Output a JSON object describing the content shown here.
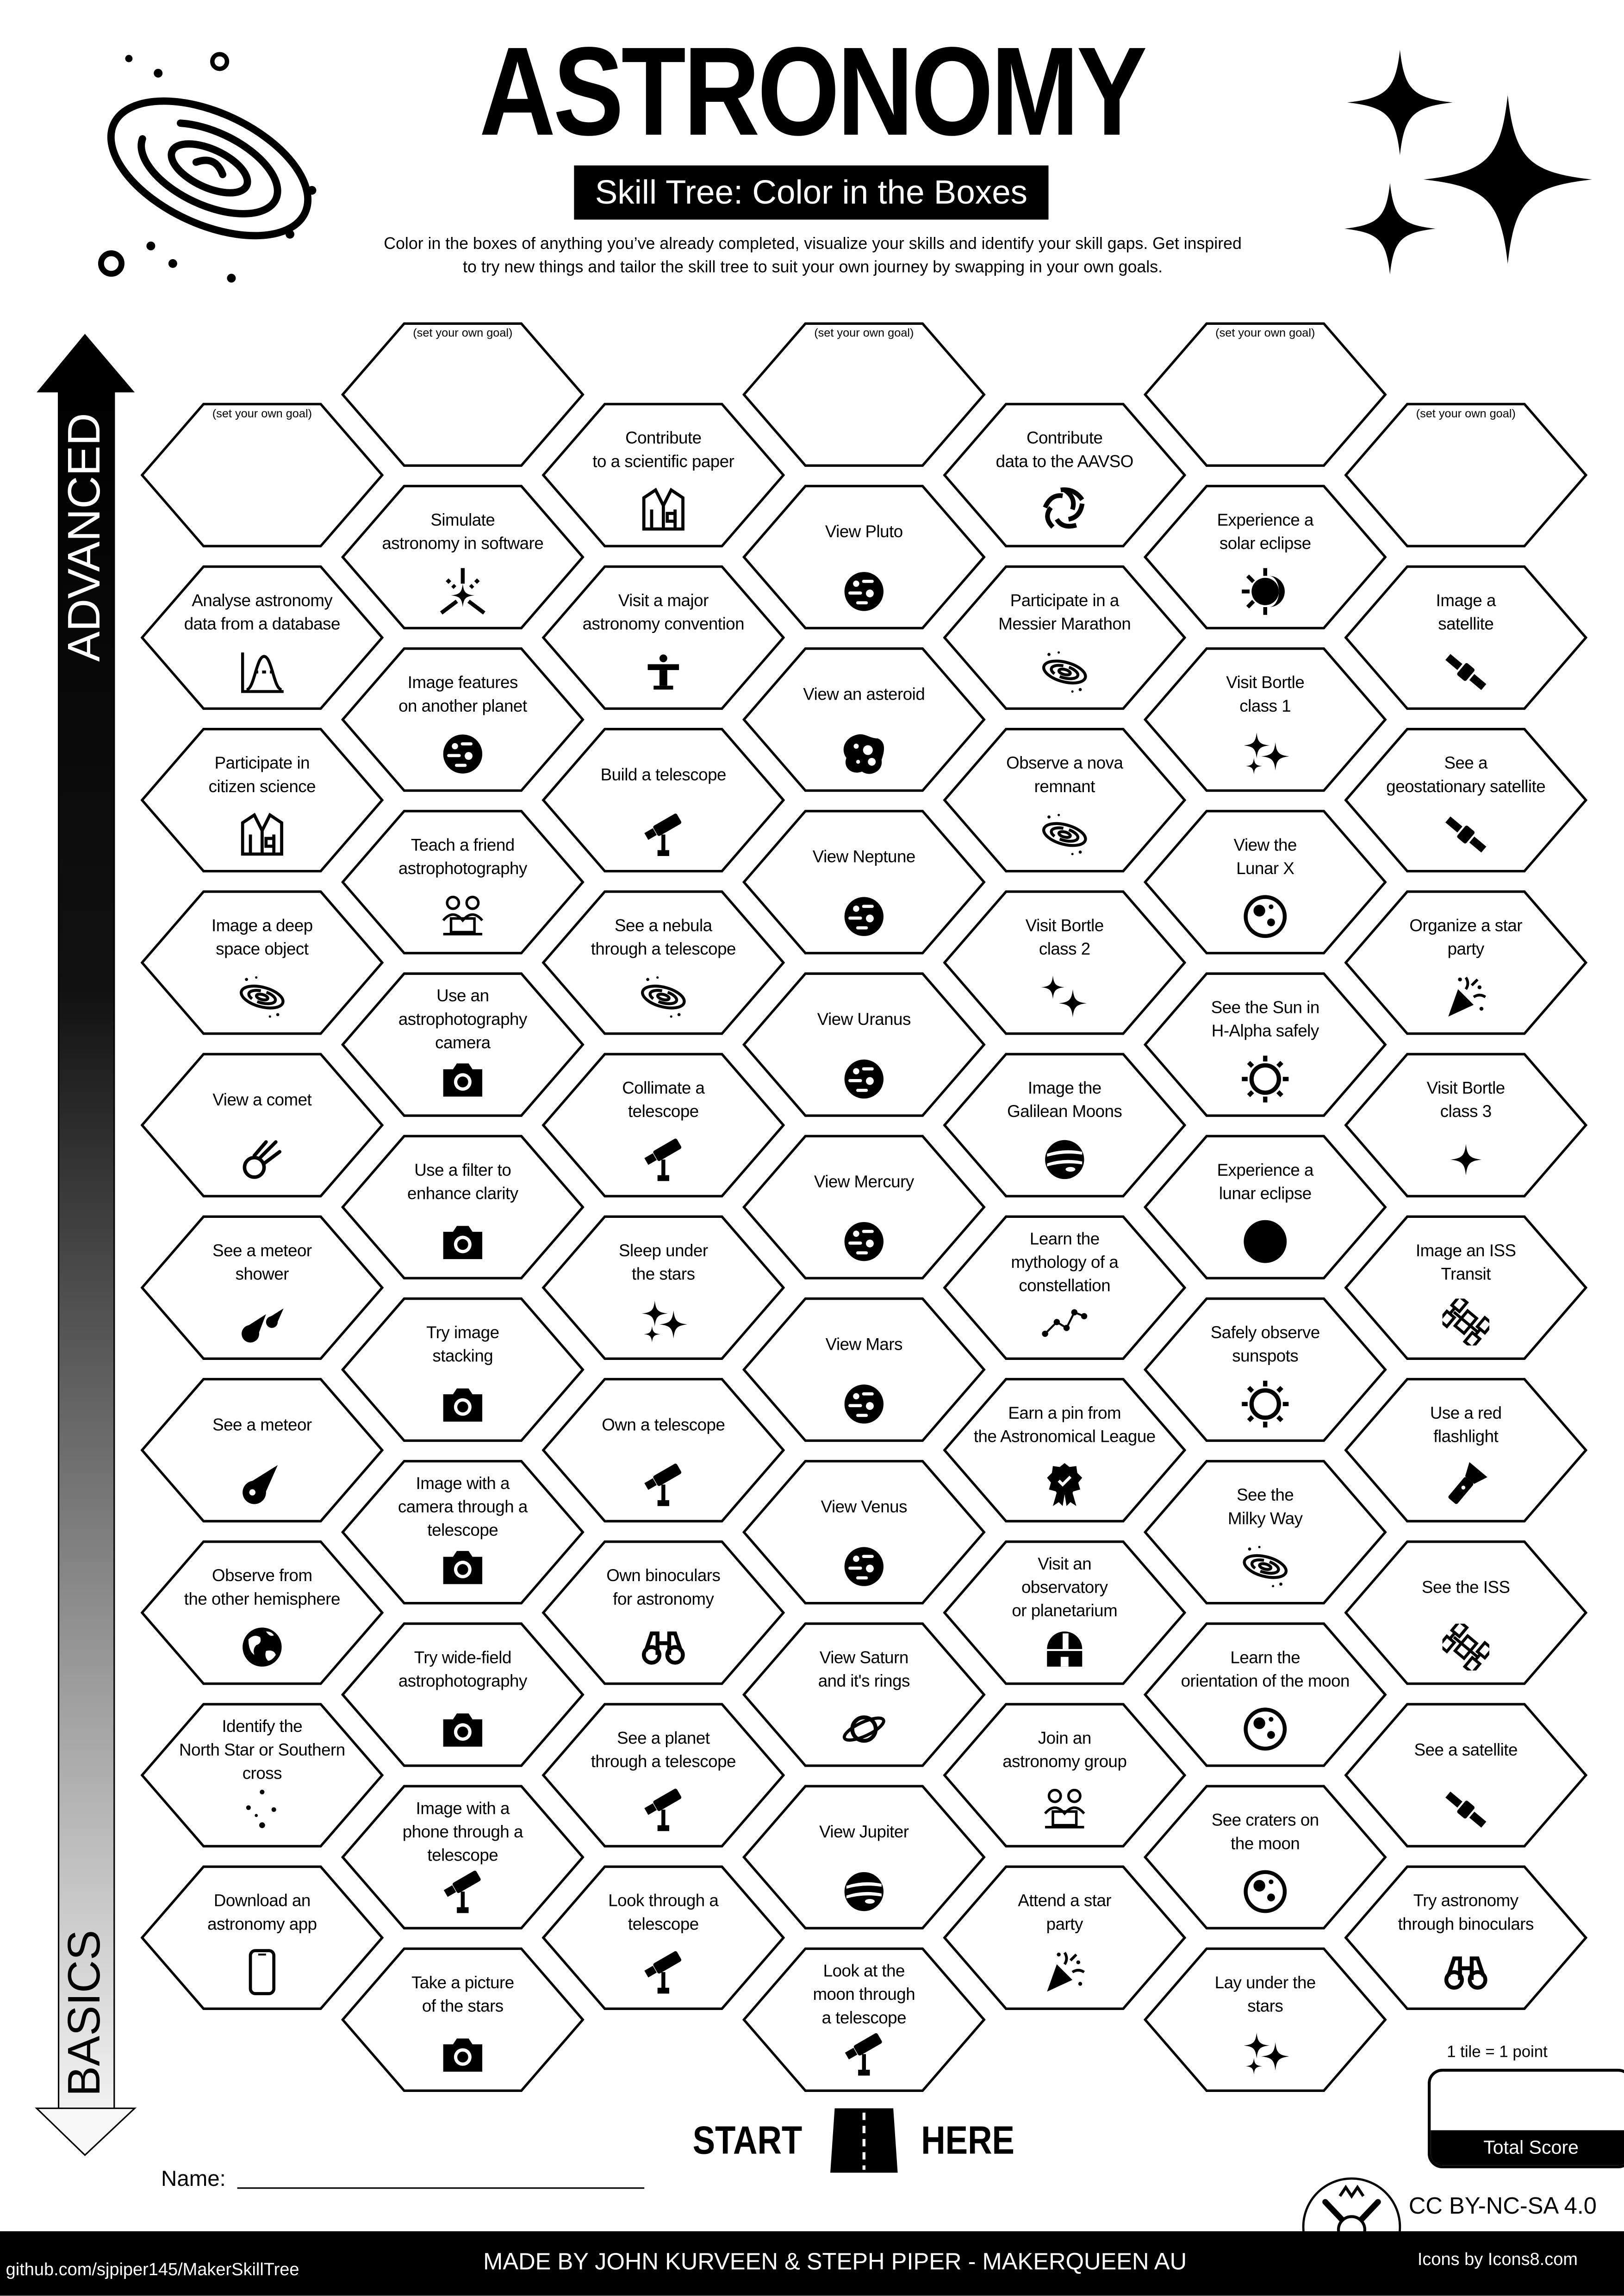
{
  "header": {
    "title": "ASTRONOMY",
    "subtitle": "Skill Tree: Color in the Boxes",
    "description": "Color in the boxes of anything you’ve already completed, visualize your skills and identify your skill gaps.  Get inspired\nto try new things and tailor the skill tree to suit your own journey by swapping in your own goals."
  },
  "axis": {
    "top_label": "ADVANCED",
    "bottom_label": "BASICS"
  },
  "goal_placeholder": "(set your own goal)",
  "columns": [
    {
      "offset": "low",
      "cells": [
        {
          "goal": true
        },
        {
          "label": "Analyse astronomy\ndata from a database",
          "icon": "bell-curve-chart"
        },
        {
          "label": "Participate in\ncitizen science",
          "icon": "lab-coat"
        },
        {
          "label": "Image a deep\nspace object",
          "icon": "galaxy"
        },
        {
          "label": "View a comet",
          "icon": "comet"
        },
        {
          "label": "See a meteor\nshower",
          "icon": "meteor-shower"
        },
        {
          "label": "See a meteor",
          "icon": "meteor"
        },
        {
          "label": "Observe from\nthe other hemisphere",
          "icon": "globe"
        },
        {
          "label": "Identify the\nNorth Star or Southern\ncross",
          "icon": "constellation"
        },
        {
          "label": "Download an\nastronomy app",
          "icon": "phone"
        }
      ]
    },
    {
      "offset": "high",
      "cells": [
        {
          "goal": true
        },
        {
          "label": "Simulate\nastronomy in software",
          "icon": "simulation"
        },
        {
          "label": "Image features\non another planet",
          "icon": "planet"
        },
        {
          "label": "Teach a friend\nastrophotography",
          "icon": "people-laptop"
        },
        {
          "label": "Use an\nastrophotography\ncamera",
          "icon": "camera"
        },
        {
          "label": "Use a filter to\nenhance clarity",
          "icon": "camera"
        },
        {
          "label": "Try image\nstacking",
          "icon": "camera"
        },
        {
          "label": "Image with a\ncamera through a\ntelescope",
          "icon": "camera"
        },
        {
          "label": "Try wide-field\nastrophotography",
          "icon": "camera"
        },
        {
          "label": "Image with a\nphone through a\ntelescope",
          "icon": "telescope"
        },
        {
          "label": "Take a picture\nof the stars",
          "icon": "camera"
        }
      ]
    },
    {
      "offset": "low",
      "cells": [
        {
          "label": "Contribute\nto a scientific paper",
          "icon": "lab-coat"
        },
        {
          "label": "Visit a major\nastronomy convention",
          "icon": "podium"
        },
        {
          "label": "Build a telescope",
          "icon": "telescope"
        },
        {
          "label": "See a nebula\nthrough a telescope",
          "icon": "galaxy"
        },
        {
          "label": "Collimate a\ntelescope",
          "icon": "telescope"
        },
        {
          "label": "Sleep under\nthe stars",
          "icon": "sparkles"
        },
        {
          "label": "Own a telescope",
          "icon": "telescope"
        },
        {
          "label": "Own binoculars\nfor astronomy",
          "icon": "binoculars"
        },
        {
          "label": "See a planet\nthrough a telescope",
          "icon": "telescope"
        },
        {
          "label": "Look through a\ntelescope",
          "icon": "telescope"
        }
      ]
    },
    {
      "offset": "high",
      "cells": [
        {
          "goal": true
        },
        {
          "label": "View Pluto",
          "icon": "planet"
        },
        {
          "label": "View an asteroid",
          "icon": "asteroid"
        },
        {
          "label": "View Neptune",
          "icon": "planet"
        },
        {
          "label": "View Uranus",
          "icon": "planet"
        },
        {
          "label": "View Mercury",
          "icon": "planet"
        },
        {
          "label": "View Mars",
          "icon": "planet"
        },
        {
          "label": "View Venus",
          "icon": "planet"
        },
        {
          "label": "View Saturn\nand it's rings",
          "icon": "saturn"
        },
        {
          "label": "View Jupiter",
          "icon": "jupiter"
        },
        {
          "label": "Look at the\nmoon through\na telescope",
          "icon": "telescope"
        }
      ]
    },
    {
      "offset": "low",
      "cells": [
        {
          "label": "Contribute\ndata to the AAVSO",
          "icon": "aperture"
        },
        {
          "label": "Participate in a\nMessier Marathon",
          "icon": "galaxy"
        },
        {
          "label": "Observe a nova\nremnant",
          "icon": "galaxy"
        },
        {
          "label": "Visit Bortle\nclass 2",
          "icon": "two-stars"
        },
        {
          "label": "Image the\nGalilean Moons",
          "icon": "jupiter"
        },
        {
          "label": "Learn the\nmythology of a\nconstellation",
          "icon": "constellation-lines"
        },
        {
          "label": "Earn a pin from\nthe Astronomical League",
          "icon": "award-badge"
        },
        {
          "label": "Visit an\nobservatory\nor planetarium",
          "icon": "observatory"
        },
        {
          "label": "Join an\nastronomy group",
          "icon": "people-laptop"
        },
        {
          "label": "Attend a star\nparty",
          "icon": "party-popper"
        }
      ]
    },
    {
      "offset": "high",
      "cells": [
        {
          "goal": true
        },
        {
          "label": "Experience a\nsolar eclipse",
          "icon": "solar-eclipse"
        },
        {
          "label": "Visit Bortle\nclass 1",
          "icon": "sparkles"
        },
        {
          "label": "View the\nLunar X",
          "icon": "moon"
        },
        {
          "label": "See the Sun in\nH-Alpha safely",
          "icon": "sun"
        },
        {
          "label": "Experience a\nlunar eclipse",
          "icon": "full-disc"
        },
        {
          "label": "Safely observe\nsunspots",
          "icon": "sun"
        },
        {
          "label": "See the\nMilky Way",
          "icon": "galaxy"
        },
        {
          "label": "Learn the\norientation of the moon",
          "icon": "moon"
        },
        {
          "label": "See craters on\nthe moon",
          "icon": "moon"
        },
        {
          "label": "Lay under the\nstars",
          "icon": "sparkles"
        }
      ]
    },
    {
      "offset": "low",
      "cells": [
        {
          "goal": true
        },
        {
          "label": "Image a\nsatellite",
          "icon": "satellite"
        },
        {
          "label": "See a\ngeostationary satellite",
          "icon": "satellite"
        },
        {
          "label": "Organize a star\nparty",
          "icon": "party-popper"
        },
        {
          "label": "Visit Bortle\nclass 3",
          "icon": "star"
        },
        {
          "label": "Image an ISS\nTransit",
          "icon": "space-station"
        },
        {
          "label": "Use a red\nflashlight",
          "icon": "flashlight"
        },
        {
          "label": "See the ISS",
          "icon": "space-station"
        },
        {
          "label": "See a satellite",
          "icon": "satellite"
        },
        {
          "label": "Try astronomy\nthrough binoculars",
          "icon": "binoculars"
        }
      ]
    }
  ],
  "start": {
    "left": "START",
    "right": "HERE"
  },
  "name_label": "Name:",
  "score": {
    "note": "1 tile = 1 point",
    "label": "Total Score"
  },
  "license": "CC BY-NC-SA 4.0",
  "footer": {
    "github": "github.com/sjpiper145/MakerSkillTree",
    "credits": "MADE BY JOHN KURVEEN & STEPH PIPER  -  MAKERQUEEN AU",
    "icons": "Icons by Icons8.com"
  }
}
